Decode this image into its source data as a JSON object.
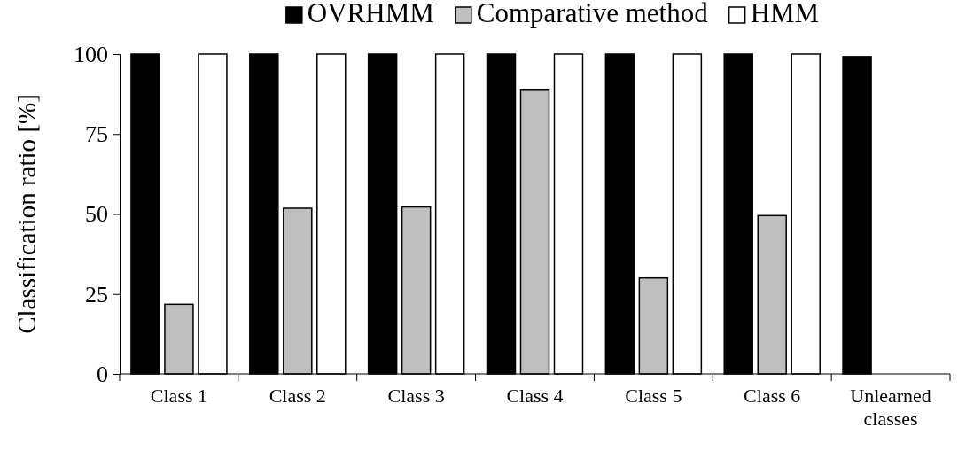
{
  "chart_data": {
    "type": "bar",
    "ylabel": "Classification ratio [%]",
    "categories": [
      "Class 1",
      "Class 2",
      "Class 3",
      "Class 4",
      "Class 5",
      "Class 6",
      "Unlearned classes"
    ],
    "series": [
      {
        "name": "OVRHMM",
        "color": "#000000",
        "values": [
          100,
          100,
          100,
          100,
          100,
          100,
          99.2
        ]
      },
      {
        "name": "Comparative method",
        "color": "#bfbfbf",
        "values": [
          21.8,
          51.8,
          52.2,
          88.7,
          30,
          49.5,
          null
        ]
      },
      {
        "name": "HMM",
        "color": "#ffffff",
        "values": [
          100,
          100,
          100,
          100,
          100,
          100,
          null
        ]
      }
    ],
    "ylim": [
      0,
      100
    ],
    "yticks": [
      0,
      25,
      50,
      75,
      100
    ],
    "grid": false,
    "legend": "top"
  }
}
